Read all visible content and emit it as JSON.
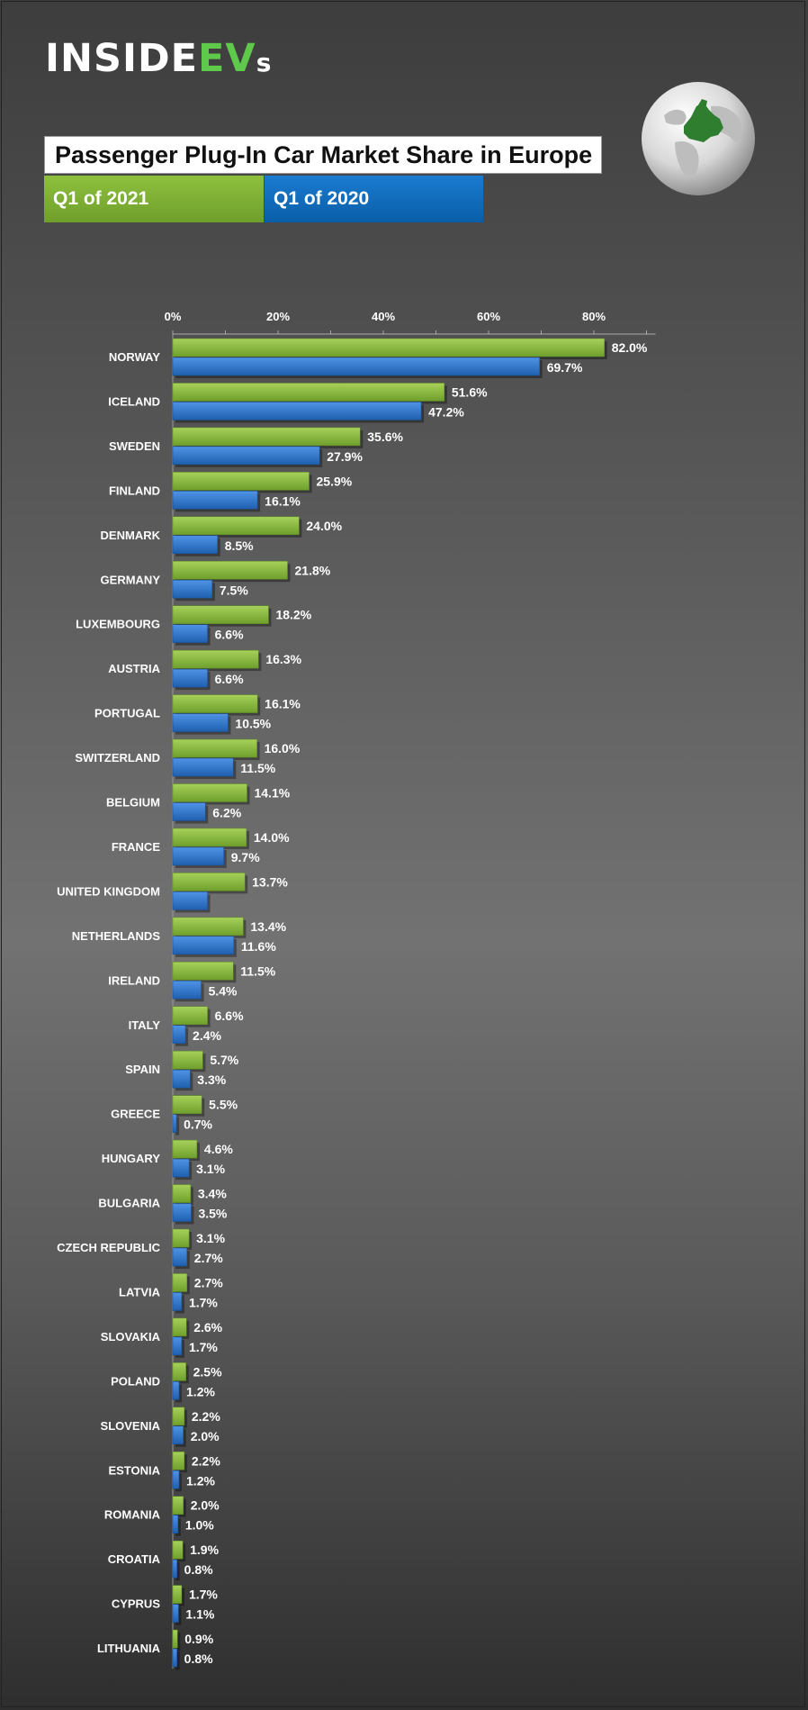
{
  "brand": {
    "inside": "INSIDE",
    "ev": "EV",
    "s": "s"
  },
  "globe": {
    "icon": "europe-globe-icon"
  },
  "header": {
    "title": "Passenger Plug-In Car Market Share in Europe",
    "legend_2021": "Q1 of 2021",
    "legend_2020": "Q1 of 2020"
  },
  "colors": {
    "series_2021": "#8cc63f",
    "series_2020": "#2e78d2",
    "legend_2021": "#7bb236",
    "legend_2020": "#1068bf"
  },
  "chart_data": {
    "type": "bar",
    "orientation": "horizontal",
    "title": "Passenger Plug-In Car Market Share in Europe",
    "xlim": [
      0,
      90
    ],
    "xticks": [
      0,
      20,
      40,
      60,
      80
    ],
    "xtick_labels": [
      "0%",
      "20%",
      "40%",
      "60%",
      "80%"
    ],
    "axis_position": "top",
    "grid": false,
    "categories": [
      "NORWAY",
      "ICELAND",
      "SWEDEN",
      "FINLAND",
      "DENMARK",
      "GERMANY",
      "LUXEMBOURG",
      "AUSTRIA",
      "PORTUGAL",
      "SWITZERLAND",
      "BELGIUM",
      "FRANCE",
      "UNITED KINGDOM",
      "NETHERLANDS",
      "IRELAND",
      "ITALY",
      "SPAIN",
      "GREECE",
      "HUNGARY",
      "BULGARIA",
      "CZECH REPUBLIC",
      "LATVIA",
      "SLOVAKIA",
      "POLAND",
      "SLOVENIA",
      "ESTONIA",
      "ROMANIA",
      "CROATIA",
      "CYPRUS",
      "LITHUANIA"
    ],
    "series": [
      {
        "name": "Q1 of 2021",
        "values": [
          82.0,
          51.6,
          35.6,
          25.9,
          24.0,
          21.8,
          18.2,
          16.3,
          16.1,
          16.0,
          14.1,
          14.0,
          13.7,
          13.4,
          11.5,
          6.6,
          5.7,
          5.5,
          4.6,
          3.4,
          3.1,
          2.7,
          2.6,
          2.5,
          2.2,
          2.2,
          2.0,
          1.9,
          1.7,
          0.9
        ],
        "labels": [
          "82.0%",
          "51.6%",
          "35.6%",
          "25.9%",
          "24.0%",
          "21.8%",
          "18.2%",
          "16.3%",
          "16.1%",
          "16.0%",
          "14.1%",
          "14.0%",
          "13.7%",
          "13.4%",
          "11.5%",
          "6.6%",
          "5.7%",
          "5.5%",
          "4.6%",
          "3.4%",
          "3.1%",
          "2.7%",
          "2.6%",
          "2.5%",
          "2.2%",
          "2.2%",
          "2.0%",
          "1.9%",
          "1.7%",
          "0.9%"
        ]
      },
      {
        "name": "Q1 of 2020",
        "values": [
          69.7,
          47.2,
          27.9,
          16.1,
          8.5,
          7.5,
          6.6,
          6.6,
          10.5,
          11.5,
          6.2,
          9.7,
          6.6,
          11.6,
          5.4,
          2.4,
          3.3,
          0.7,
          3.1,
          3.5,
          2.7,
          1.7,
          1.7,
          1.2,
          2.0,
          1.2,
          1.0,
          0.8,
          1.1,
          0.8
        ],
        "labels": [
          "69.7%",
          "47.2%",
          "27.9%",
          "16.1%",
          "8.5%",
          "7.5%",
          "6.6%",
          "6.6%",
          "10.5%",
          "11.5%",
          "6.2%",
          "9.7%",
          "",
          "11.6%",
          "5.4%",
          "2.4%",
          "3.3%",
          "0.7%",
          "3.1%",
          "3.5%",
          "2.7%",
          "1.7%",
          "1.7%",
          "1.2%",
          "2.0%",
          "1.2%",
          "1.0%",
          "0.8%",
          "1.1%",
          "0.8%"
        ]
      }
    ]
  }
}
